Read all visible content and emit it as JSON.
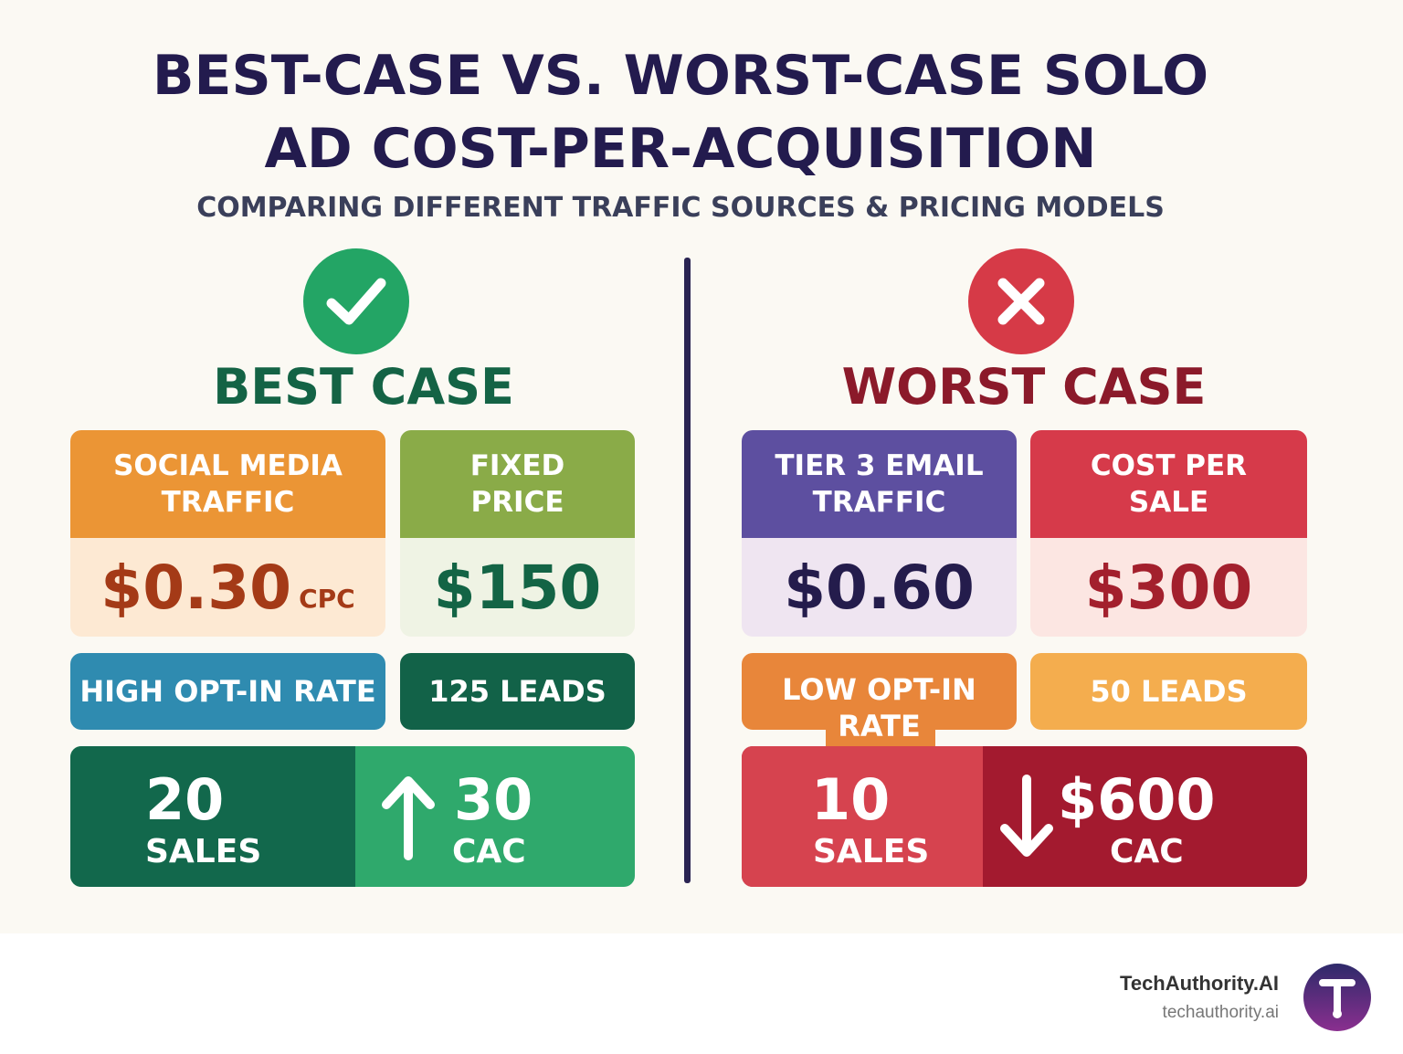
{
  "title": {
    "line1": "BEST-CASE VS. WORST-CASE SOLO",
    "line2": "AD COST-PER-ACQUISITION",
    "subtitle": "COMPARING DIFFERENT TRAFFIC SOURCES & PRICING MODELS"
  },
  "best": {
    "heading": "BEST CASE",
    "icon": "check-icon",
    "color": "#23a565",
    "traffic": {
      "label": "SOCIAL MEDIA TRAFFIC",
      "value": "$0.30",
      "unit": "CPC"
    },
    "pricing": {
      "label": "FIXED PRICE",
      "value": "$150"
    },
    "optin": "HIGH OPT-IN RATE",
    "leads": "125 LEADS",
    "sales": {
      "value": "20",
      "label": "SALES"
    },
    "cac": {
      "value": "30",
      "label": "CAC",
      "arrow": "arrow-up-icon"
    }
  },
  "worst": {
    "heading": "WORST CASE",
    "icon": "x-icon",
    "color": "#d63a47",
    "traffic": {
      "label": "TIER 3 EMAIL TRAFFIC",
      "value": "$0.60"
    },
    "pricing": {
      "label": "COST PER SALE",
      "value": "$300"
    },
    "optin": "LOW OPT-IN RATE",
    "leads": "50 LEADS",
    "sales": {
      "value": "10",
      "label": "SALES"
    },
    "cac": {
      "value": "$600",
      "label": "CAC",
      "arrow": "arrow-down-icon"
    }
  },
  "footer": {
    "brand": "TechAuthority.AI",
    "url": "techauthority.ai"
  }
}
